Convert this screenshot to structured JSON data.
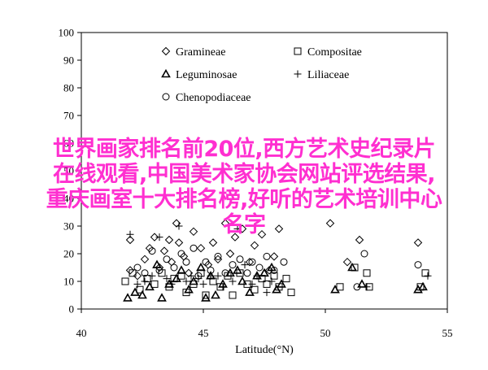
{
  "overlay": {
    "lines": [
      "世界画家排名前20位,西方艺术史纪录片",
      "在线观看,中国美术家协会网站评选结果,",
      "重庆画室十大排名榜,好听的艺术培训中心",
      "名字"
    ],
    "color": "#ff2fd0"
  },
  "chart_data": {
    "type": "scatter",
    "xlabel": "Latitude(°N)",
    "ylabel": "",
    "xlim": [
      40,
      55
    ],
    "ylim": [
      0,
      100
    ],
    "xticks": [
      40,
      45,
      50,
      55
    ],
    "yticks": [
      0,
      10,
      20,
      30,
      40,
      50,
      60,
      70,
      80,
      90,
      100
    ],
    "grid": false,
    "legend_position": "top-center",
    "series": [
      {
        "name": "Gramineae",
        "marker": "diamond",
        "points": [
          [
            42.0,
            25
          ],
          [
            42.0,
            14
          ],
          [
            42.3,
            12
          ],
          [
            42.6,
            18
          ],
          [
            42.8,
            22
          ],
          [
            43.0,
            26
          ],
          [
            43.2,
            15
          ],
          [
            43.4,
            21
          ],
          [
            43.6,
            25
          ],
          [
            43.7,
            17
          ],
          [
            43.9,
            31
          ],
          [
            44.0,
            24
          ],
          [
            44.2,
            19
          ],
          [
            44.4,
            13
          ],
          [
            44.6,
            28
          ],
          [
            44.9,
            22
          ],
          [
            45.2,
            16
          ],
          [
            45.4,
            24
          ],
          [
            45.6,
            18
          ],
          [
            45.9,
            31
          ],
          [
            46.1,
            20
          ],
          [
            46.3,
            26
          ],
          [
            46.6,
            29
          ],
          [
            46.9,
            17
          ],
          [
            47.1,
            23
          ],
          [
            47.4,
            27
          ],
          [
            47.7,
            14
          ],
          [
            47.9,
            19
          ],
          [
            48.1,
            29
          ],
          [
            50.2,
            31
          ],
          [
            50.9,
            17
          ],
          [
            51.4,
            25
          ],
          [
            53.8,
            24
          ]
        ]
      },
      {
        "name": "Compositae",
        "marker": "square",
        "points": [
          [
            41.8,
            10
          ],
          [
            42.1,
            13
          ],
          [
            42.4,
            7
          ],
          [
            42.7,
            11
          ],
          [
            43.0,
            9
          ],
          [
            43.3,
            13
          ],
          [
            43.6,
            8
          ],
          [
            43.8,
            11
          ],
          [
            44.1,
            12
          ],
          [
            44.3,
            6
          ],
          [
            44.6,
            9
          ],
          [
            44.9,
            13
          ],
          [
            45.1,
            5
          ],
          [
            45.4,
            10
          ],
          [
            45.7,
            8
          ],
          [
            46.0,
            12
          ],
          [
            46.2,
            5
          ],
          [
            46.5,
            13
          ],
          [
            46.8,
            9
          ],
          [
            47.1,
            7
          ],
          [
            47.4,
            11
          ],
          [
            47.6,
            9
          ],
          [
            47.9,
            12
          ],
          [
            48.1,
            8
          ],
          [
            48.4,
            11
          ],
          [
            48.6,
            6
          ],
          [
            50.6,
            8
          ],
          [
            51.2,
            15
          ],
          [
            51.7,
            13
          ],
          [
            51.8,
            8
          ],
          [
            53.9,
            8
          ],
          [
            54.1,
            13
          ]
        ]
      },
      {
        "name": "Leguminosae",
        "marker": "triangle",
        "points": [
          [
            41.9,
            4
          ],
          [
            42.2,
            6
          ],
          [
            42.5,
            5
          ],
          [
            42.8,
            8
          ],
          [
            43.1,
            16
          ],
          [
            43.3,
            4
          ],
          [
            43.6,
            9
          ],
          [
            43.9,
            11
          ],
          [
            44.1,
            14
          ],
          [
            44.4,
            7
          ],
          [
            44.6,
            10
          ],
          [
            44.9,
            15
          ],
          [
            45.1,
            4
          ],
          [
            45.3,
            12
          ],
          [
            45.5,
            5
          ],
          [
            45.8,
            9
          ],
          [
            46.1,
            13
          ],
          [
            46.4,
            14
          ],
          [
            46.6,
            10
          ],
          [
            46.9,
            6
          ],
          [
            47.2,
            12
          ],
          [
            47.5,
            13
          ],
          [
            47.8,
            15
          ],
          [
            48.0,
            7
          ],
          [
            48.2,
            9
          ],
          [
            50.4,
            7
          ],
          [
            51.1,
            15
          ],
          [
            51.5,
            9
          ],
          [
            53.8,
            7
          ],
          [
            54.0,
            8
          ]
        ]
      },
      {
        "name": "Liliaceae",
        "marker": "plus",
        "points": [
          [
            42.0,
            27
          ],
          [
            42.3,
            9
          ],
          [
            42.6,
            10
          ],
          [
            42.9,
            12
          ],
          [
            43.2,
            26
          ],
          [
            43.5,
            11
          ],
          [
            43.7,
            9
          ],
          [
            44.0,
            30
          ],
          [
            44.3,
            10
          ],
          [
            44.5,
            12
          ],
          [
            44.8,
            11
          ],
          [
            45.0,
            9
          ],
          [
            45.3,
            12
          ],
          [
            45.6,
            12
          ],
          [
            45.8,
            8
          ],
          [
            46.2,
            10
          ],
          [
            46.4,
            29
          ],
          [
            46.7,
            16
          ],
          [
            47.0,
            9
          ],
          [
            47.2,
            12
          ],
          [
            47.6,
            6
          ],
          [
            47.8,
            10
          ],
          [
            51.7,
            8
          ],
          [
            54.2,
            12
          ]
        ]
      },
      {
        "name": "Chenopodiaceae",
        "marker": "circle",
        "points": [
          [
            42.3,
            15
          ],
          [
            42.6,
            13
          ],
          [
            42.9,
            21
          ],
          [
            43.2,
            14
          ],
          [
            43.5,
            18
          ],
          [
            43.8,
            15
          ],
          [
            44.1,
            20
          ],
          [
            44.3,
            17
          ],
          [
            44.6,
            22
          ],
          [
            44.8,
            12
          ],
          [
            45.1,
            17
          ],
          [
            45.3,
            14
          ],
          [
            45.6,
            19
          ],
          [
            45.9,
            13
          ],
          [
            46.2,
            16
          ],
          [
            46.5,
            18
          ],
          [
            46.8,
            13
          ],
          [
            47.0,
            17
          ],
          [
            47.3,
            15
          ],
          [
            47.6,
            19
          ],
          [
            47.9,
            14
          ],
          [
            48.3,
            17
          ],
          [
            51.3,
            8
          ],
          [
            51.6,
            20
          ],
          [
            53.8,
            16
          ]
        ]
      }
    ]
  }
}
